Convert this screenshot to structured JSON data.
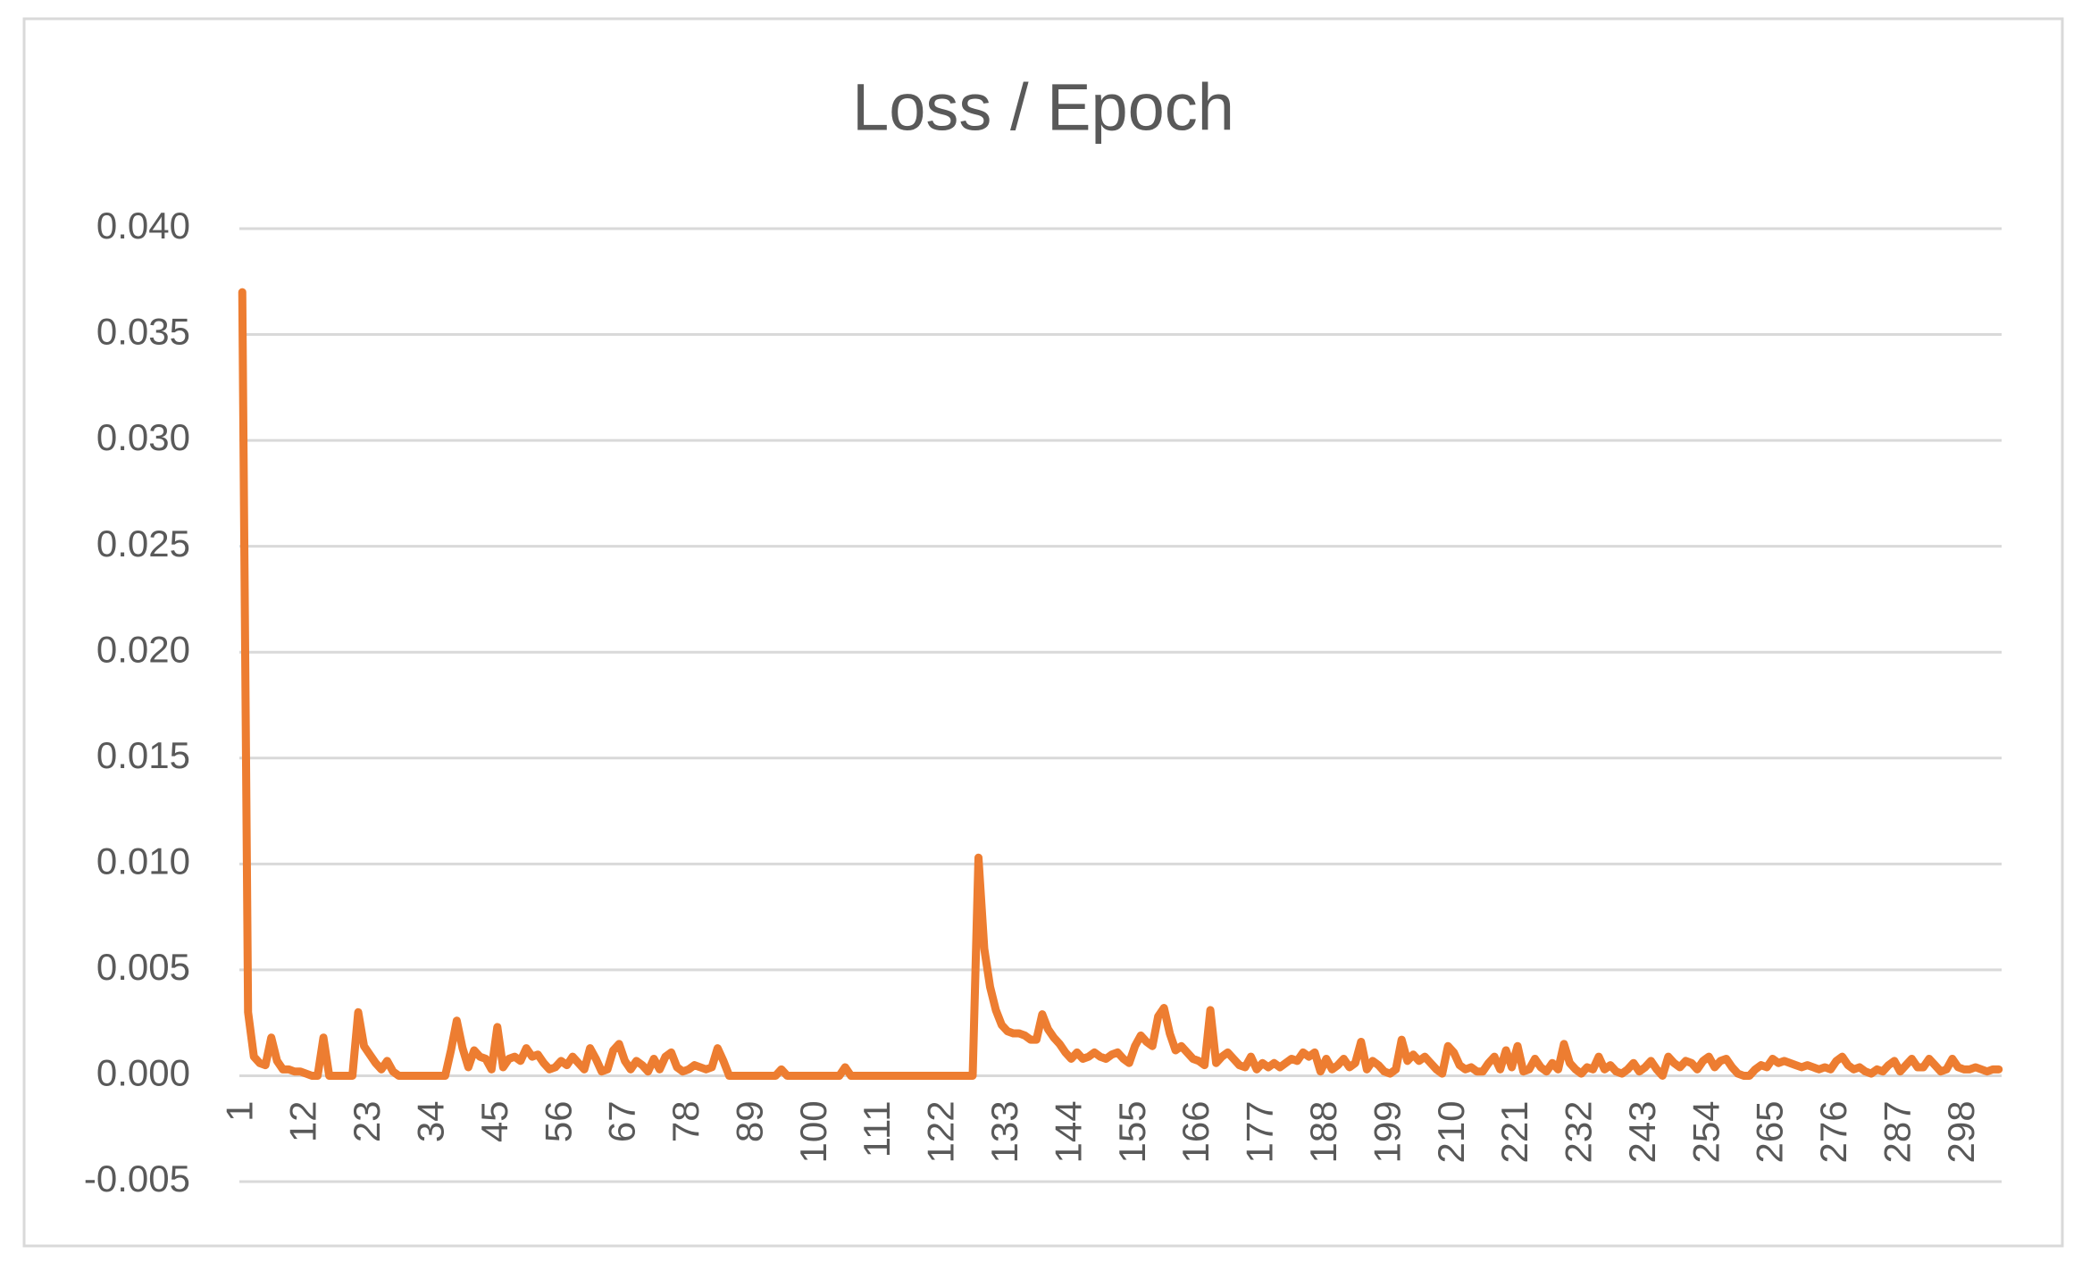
{
  "chart_data": {
    "type": "line",
    "title": "Loss / Epoch",
    "color": "#ED7D31",
    "grid": true,
    "ylim": [
      -0.005,
      0.04
    ],
    "yticks": [
      {
        "value": -0.005,
        "label": "-0.005"
      },
      {
        "value": 0,
        "label": "0.000"
      },
      {
        "value": 0.005,
        "label": "0.005"
      },
      {
        "value": 0.01,
        "label": "0.010"
      },
      {
        "value": 0.015,
        "label": "0.015"
      },
      {
        "value": 0.02,
        "label": "0.020"
      },
      {
        "value": 0.025,
        "label": "0.025"
      },
      {
        "value": 0.03,
        "label": "0.030"
      },
      {
        "value": 0.035,
        "label": "0.035"
      },
      {
        "value": 0.04,
        "label": "0.040"
      }
    ],
    "categories": [
      "1",
      null,
      null,
      null,
      null,
      null,
      null,
      null,
      null,
      null,
      null,
      "12",
      null,
      null,
      null,
      null,
      null,
      null,
      null,
      null,
      null,
      null,
      "23",
      null,
      null,
      null,
      null,
      null,
      null,
      null,
      null,
      null,
      null,
      "34",
      null,
      null,
      null,
      null,
      null,
      null,
      null,
      null,
      null,
      null,
      "45",
      null,
      null,
      null,
      null,
      null,
      null,
      null,
      null,
      null,
      null,
      "56",
      null,
      null,
      null,
      null,
      null,
      null,
      null,
      null,
      null,
      null,
      "67",
      null,
      null,
      null,
      null,
      null,
      null,
      null,
      null,
      null,
      null,
      "78",
      null,
      null,
      null,
      null,
      null,
      null,
      null,
      null,
      null,
      null,
      "89",
      null,
      null,
      null,
      null,
      null,
      null,
      null,
      null,
      null,
      null,
      "100",
      null,
      null,
      null,
      null,
      null,
      null,
      null,
      null,
      null,
      null,
      "111",
      null,
      null,
      null,
      null,
      null,
      null,
      null,
      null,
      null,
      null,
      "122",
      null,
      null,
      null,
      null,
      null,
      null,
      null,
      null,
      null,
      null,
      "133",
      null,
      null,
      null,
      null,
      null,
      null,
      null,
      null,
      null,
      null,
      "144",
      null,
      null,
      null,
      null,
      null,
      null,
      null,
      null,
      null,
      null,
      "155",
      null,
      null,
      null,
      null,
      null,
      null,
      null,
      null,
      null,
      null,
      "166",
      null,
      null,
      null,
      null,
      null,
      null,
      null,
      null,
      null,
      null,
      "177",
      null,
      null,
      null,
      null,
      null,
      null,
      null,
      null,
      null,
      null,
      "188",
      null,
      null,
      null,
      null,
      null,
      null,
      null,
      null,
      null,
      null,
      "199",
      null,
      null,
      null,
      null,
      null,
      null,
      null,
      null,
      null,
      null,
      "210",
      null,
      null,
      null,
      null,
      null,
      null,
      null,
      null,
      null,
      null,
      "221",
      null,
      null,
      null,
      null,
      null,
      null,
      null,
      null,
      null,
      null,
      "232",
      null,
      null,
      null,
      null,
      null,
      null,
      null,
      null,
      null,
      null,
      "243",
      null,
      null,
      null,
      null,
      null,
      null,
      null,
      null,
      null,
      null,
      "254",
      null,
      null,
      null,
      null,
      null,
      null,
      null,
      null,
      null,
      null,
      "265",
      null,
      null,
      null,
      null,
      null,
      null,
      null,
      null,
      null,
      null,
      "276",
      null,
      null,
      null,
      null,
      null,
      null,
      null,
      null,
      null,
      null,
      "287",
      null,
      null,
      null,
      null,
      null,
      null,
      null,
      null,
      null,
      null,
      "298",
      null,
      null,
      null,
      null,
      null,
      null
    ],
    "values": [
      0.037,
      0.003,
      0.0009,
      0.0006,
      0.0005,
      0.0018,
      0.0007,
      0.0003,
      0.0003,
      0.0002,
      0.0002,
      0.0001,
      0,
      0,
      0.0018,
      0,
      0,
      0,
      0,
      0,
      0.003,
      0.0014,
      0.001,
      0.0006,
      0.0003,
      0.0007,
      0.0002,
      0,
      0,
      0,
      0,
      0,
      0,
      0,
      0,
      0,
      0.0012,
      0.0026,
      0.0013,
      0.0004,
      0.0012,
      0.0009,
      0.0008,
      0.0003,
      0.0023,
      0.0004,
      0.0008,
      0.0009,
      0.0007,
      0.0013,
      0.0009,
      0.001,
      0.0006,
      0.0003,
      0.0004,
      0.0007,
      0.0005,
      0.0009,
      0.0006,
      0.0003,
      0.0013,
      0.0008,
      0.0002,
      0.0003,
      0.0012,
      0.0015,
      0.0007,
      0.0003,
      0.0007,
      0.0005,
      0.0002,
      0.0008,
      0.0003,
      0.0009,
      0.0011,
      0.0004,
      0.0002,
      0.0003,
      0.0005,
      0.0004,
      0.0003,
      0.0004,
      0.0013,
      0.0007,
      0,
      0,
      0,
      0,
      0,
      0,
      0,
      0,
      0,
      0.0003,
      0,
      0,
      0,
      0,
      0,
      0,
      0,
      0,
      0,
      0,
      0.0004,
      0,
      0,
      0,
      0,
      0,
      0,
      0,
      0,
      0,
      0,
      0,
      0,
      0,
      0,
      0,
      0,
      0,
      0,
      0,
      0,
      0,
      0,
      0.0103,
      0.006,
      0.0042,
      0.0031,
      0.0024,
      0.0021,
      0.002,
      0.002,
      0.0019,
      0.0017,
      0.0017,
      0.0029,
      0.0022,
      0.0018,
      0.0015,
      0.0011,
      0.0008,
      0.0011,
      0.0008,
      0.0009,
      0.0011,
      0.0009,
      0.0008,
      0.001,
      0.0011,
      0.0008,
      0.0006,
      0.0014,
      0.0019,
      0.0016,
      0.0014,
      0.0028,
      0.0032,
      0.002,
      0.0012,
      0.0014,
      0.0011,
      0.0008,
      0.0007,
      0.0005,
      0.0031,
      0.0006,
      0.0009,
      0.0011,
      0.0008,
      0.0005,
      0.0004,
      0.0009,
      0.0003,
      0.0006,
      0.0004,
      0.0006,
      0.0004,
      0.0006,
      0.0008,
      0.0007,
      0.0011,
      0.0009,
      0.0011,
      0.0002,
      0.0008,
      0.0003,
      0.0005,
      0.0008,
      0.0004,
      0.0006,
      0.0016,
      0.0003,
      0.0007,
      0.0005,
      0.0002,
      0.0001,
      0.0003,
      0.0017,
      0.0007,
      0.001,
      0.0007,
      0.0009,
      0.0006,
      0.0003,
      0.0001,
      0.0014,
      0.0011,
      0.0005,
      0.0003,
      0.0004,
      0.0002,
      0.0002,
      0.0006,
      0.0009,
      0.0003,
      0.0012,
      0.0004,
      0.0014,
      0.0002,
      0.0003,
      0.0008,
      0.0004,
      0.0002,
      0.0006,
      0.0003,
      0.0015,
      0.0006,
      0.0003,
      0.0001,
      0.0004,
      0.0003,
      0.0009,
      0.0003,
      0.0005,
      0.0002,
      0.0001,
      0.0003,
      0.0006,
      0.0002,
      0.0004,
      0.0007,
      0.0003,
      0,
      0.0009,
      0.0006,
      0.0004,
      0.0007,
      0.0006,
      0.0003,
      0.0007,
      0.0009,
      0.0004,
      0.0007,
      0.0008,
      0.0004,
      0.0001,
      0,
      0,
      0.0003,
      0.0005,
      0.0004,
      0.0008,
      0.0006,
      0.0007,
      0.0006,
      0.0005,
      0.0004,
      0.0005,
      0.0004,
      0.0003,
      0.0004,
      0.0003,
      0.0007,
      0.0009,
      0.0005,
      0.0003,
      0.0004,
      0.0002,
      0.0001,
      0.0003,
      0.0002,
      0.0005,
      0.0007,
      0.0002,
      0.0005,
      0.0008,
      0.0004,
      0.0004,
      0.0008,
      0.0005,
      0.0002,
      0.0003,
      0.0008,
      0.0004,
      0.0003,
      0.0003,
      0.0004,
      0.0003,
      0.0002,
      0.0003,
      0.0003
    ]
  }
}
